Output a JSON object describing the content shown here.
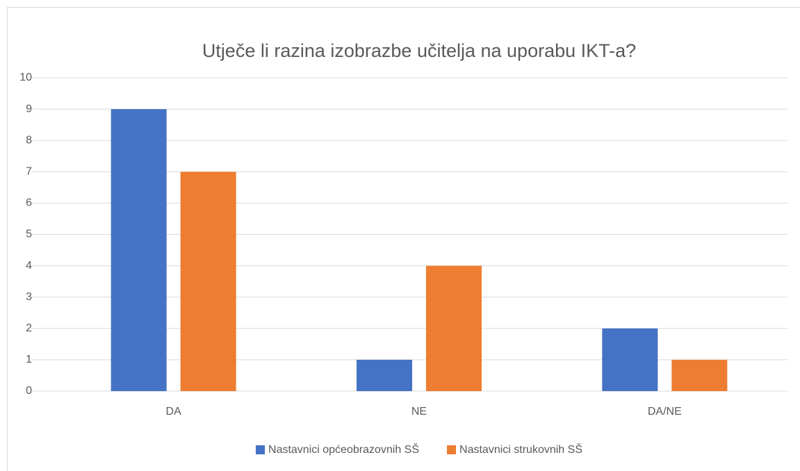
{
  "chart_data": {
    "type": "bar",
    "title": "Utječe li razina izobrazbe učitelja na uporabu IKT-a?",
    "categories": [
      "DA",
      "NE",
      "DA/NE"
    ],
    "series": [
      {
        "name": "Nastavnici općeobrazovnih SŠ",
        "color": "#4472c4",
        "values": [
          9,
          1,
          2
        ]
      },
      {
        "name": "Nastavnici strukovnih SŠ",
        "color": "#ed7d31",
        "values": [
          7,
          4,
          1
        ]
      }
    ],
    "ylim": [
      0,
      10
    ],
    "yticks": [
      0,
      1,
      2,
      3,
      4,
      5,
      6,
      7,
      8,
      9,
      10
    ],
    "grid": true,
    "legend": "bottom"
  }
}
